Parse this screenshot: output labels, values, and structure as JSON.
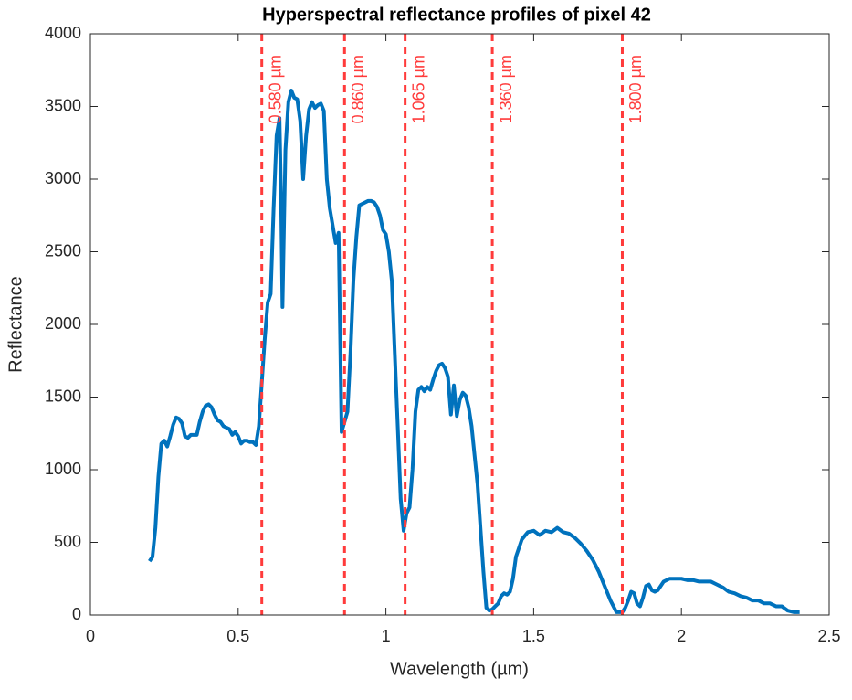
{
  "chart_data": {
    "type": "line",
    "title": "Hyperspectral reflectance profiles of pixel 42",
    "x_label": "Wavelength (µm)",
    "y_label": "Reflectance",
    "xlim": [
      0,
      2.5
    ],
    "ylim": [
      0,
      4000
    ],
    "xticks": [
      0,
      0.5,
      1,
      1.5,
      2,
      2.5
    ],
    "yticks": [
      0,
      500,
      1000,
      1500,
      2000,
      2500,
      3000,
      3500,
      4000
    ],
    "reference_color": "#ff3b3b",
    "reference_lines": [
      {
        "value": 0.58,
        "label": "0.580 µm"
      },
      {
        "value": 0.86,
        "label": "0.860 µm"
      },
      {
        "value": 1.065,
        "label": "1.065 µm"
      },
      {
        "value": 1.36,
        "label": "1.360 µm"
      },
      {
        "value": 1.8,
        "label": "1.800 µm"
      }
    ],
    "x": [
      0.2,
      0.21,
      0.22,
      0.23,
      0.24,
      0.25,
      0.26,
      0.27,
      0.28,
      0.29,
      0.3,
      0.31,
      0.32,
      0.33,
      0.34,
      0.35,
      0.36,
      0.37,
      0.38,
      0.39,
      0.4,
      0.41,
      0.42,
      0.43,
      0.44,
      0.45,
      0.46,
      0.47,
      0.48,
      0.49,
      0.5,
      0.51,
      0.52,
      0.53,
      0.54,
      0.55,
      0.56,
      0.57,
      0.58,
      0.59,
      0.6,
      0.61,
      0.62,
      0.63,
      0.64,
      0.645,
      0.65,
      0.66,
      0.67,
      0.68,
      0.69,
      0.7,
      0.71,
      0.72,
      0.73,
      0.74,
      0.75,
      0.76,
      0.77,
      0.78,
      0.79,
      0.8,
      0.81,
      0.82,
      0.83,
      0.84,
      0.85,
      0.86,
      0.87,
      0.88,
      0.89,
      0.9,
      0.91,
      0.92,
      0.93,
      0.94,
      0.95,
      0.96,
      0.97,
      0.98,
      0.99,
      1.0,
      1.01,
      1.02,
      1.03,
      1.04,
      1.05,
      1.06,
      1.07,
      1.08,
      1.09,
      1.1,
      1.11,
      1.12,
      1.13,
      1.14,
      1.15,
      1.16,
      1.17,
      1.18,
      1.19,
      1.2,
      1.21,
      1.22,
      1.23,
      1.24,
      1.25,
      1.26,
      1.27,
      1.28,
      1.29,
      1.3,
      1.31,
      1.32,
      1.33,
      1.34,
      1.35,
      1.36,
      1.37,
      1.38,
      1.39,
      1.4,
      1.41,
      1.42,
      1.43,
      1.44,
      1.46,
      1.48,
      1.5,
      1.52,
      1.54,
      1.56,
      1.58,
      1.6,
      1.62,
      1.64,
      1.66,
      1.68,
      1.7,
      1.72,
      1.74,
      1.76,
      1.78,
      1.8,
      1.81,
      1.82,
      1.83,
      1.84,
      1.85,
      1.86,
      1.87,
      1.88,
      1.89,
      1.9,
      1.91,
      1.92,
      1.94,
      1.96,
      1.98,
      2.0,
      2.02,
      2.04,
      2.06,
      2.08,
      2.1,
      2.12,
      2.14,
      2.16,
      2.18,
      2.2,
      2.22,
      2.24,
      2.26,
      2.28,
      2.3,
      2.32,
      2.34,
      2.36,
      2.38,
      2.4
    ],
    "series": [
      {
        "color": "#0072bd",
        "values": [
          370,
          400,
          600,
          950,
          1180,
          1200,
          1160,
          1230,
          1310,
          1360,
          1350,
          1320,
          1230,
          1220,
          1240,
          1240,
          1240,
          1330,
          1400,
          1440,
          1450,
          1430,
          1380,
          1340,
          1330,
          1300,
          1290,
          1280,
          1240,
          1260,
          1230,
          1180,
          1200,
          1200,
          1190,
          1190,
          1170,
          1300,
          1600,
          1900,
          2150,
          2210,
          2800,
          3300,
          3420,
          2900,
          2120,
          3200,
          3530,
          3610,
          3560,
          3550,
          3400,
          3000,
          3300,
          3480,
          3530,
          3490,
          3510,
          3520,
          3470,
          3000,
          2800,
          2680,
          2560,
          2630,
          1260,
          1330,
          1400,
          1800,
          2300,
          2600,
          2820,
          2830,
          2840,
          2850,
          2850,
          2840,
          2810,
          2750,
          2650,
          2620,
          2500,
          2300,
          1800,
          1300,
          800,
          580,
          700,
          740,
          1000,
          1400,
          1550,
          1570,
          1540,
          1570,
          1550,
          1620,
          1680,
          1720,
          1730,
          1700,
          1640,
          1380,
          1580,
          1370,
          1480,
          1530,
          1510,
          1430,
          1300,
          1100,
          900,
          600,
          300,
          50,
          30,
          40,
          60,
          80,
          130,
          150,
          140,
          160,
          250,
          400,
          520,
          570,
          580,
          550,
          580,
          570,
          600,
          570,
          560,
          530,
          490,
          440,
          380,
          300,
          200,
          100,
          20,
          20,
          50,
          100,
          160,
          150,
          80,
          60,
          120,
          200,
          210,
          170,
          160,
          170,
          230,
          250,
          250,
          250,
          240,
          240,
          230,
          230,
          230,
          210,
          190,
          160,
          150,
          130,
          120,
          100,
          100,
          80,
          80,
          60,
          60,
          30,
          20,
          20
        ]
      }
    ]
  }
}
